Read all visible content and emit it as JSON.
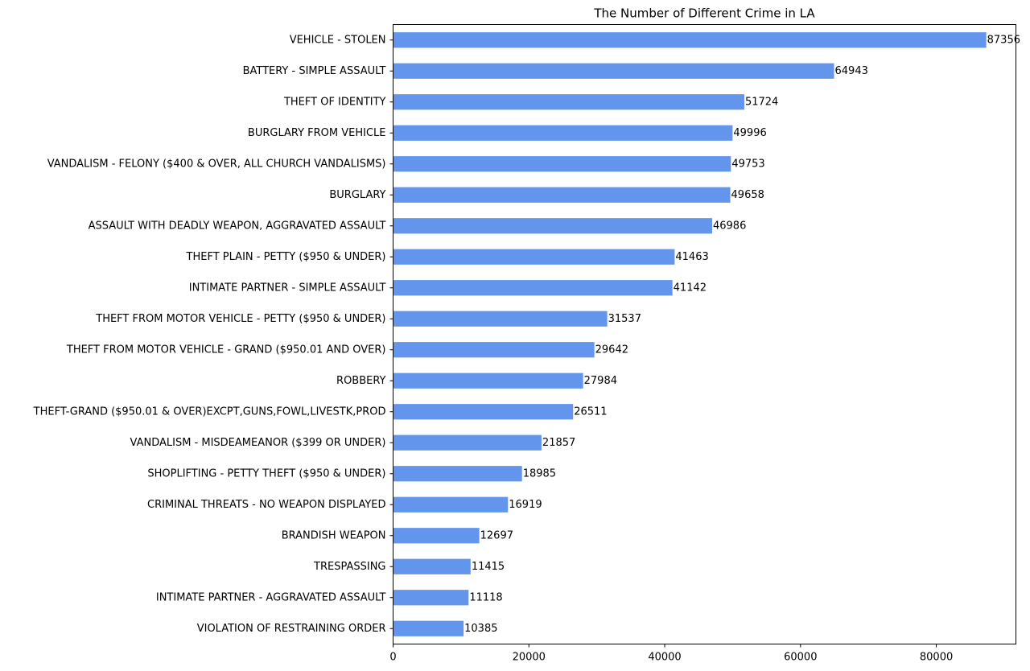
{
  "chart_data": {
    "type": "bar",
    "orientation": "horizontal",
    "title": "The Number of Different Crime in LA",
    "xlabel": "",
    "ylabel": "",
    "xlim": [
      0,
      91724
    ],
    "xticks": [
      0,
      20000,
      40000,
      60000,
      80000
    ],
    "xtick_labels": [
      "0",
      "20000",
      "40000",
      "60000",
      "80000"
    ],
    "grid": false,
    "bar_color": "#6495ED",
    "categories": [
      "VEHICLE - STOLEN",
      "BATTERY - SIMPLE ASSAULT",
      "THEFT OF IDENTITY",
      "BURGLARY FROM VEHICLE",
      "VANDALISM - FELONY ($400 & OVER, ALL CHURCH VANDALISMS)",
      "BURGLARY",
      "ASSAULT WITH DEADLY WEAPON, AGGRAVATED ASSAULT",
      "THEFT PLAIN - PETTY ($950 & UNDER)",
      "INTIMATE PARTNER - SIMPLE ASSAULT",
      "THEFT FROM MOTOR VEHICLE - PETTY ($950 & UNDER)",
      "THEFT FROM MOTOR VEHICLE - GRAND ($950.01 AND OVER)",
      "ROBBERY",
      "THEFT-GRAND ($950.01 & OVER)EXCPT,GUNS,FOWL,LIVESTK,PROD",
      "VANDALISM - MISDEAMEANOR ($399 OR UNDER)",
      "SHOPLIFTING - PETTY THEFT ($950 & UNDER)",
      "CRIMINAL THREATS - NO WEAPON DISPLAYED",
      "BRANDISH WEAPON",
      "TRESPASSING",
      "INTIMATE PARTNER - AGGRAVATED ASSAULT",
      "VIOLATION OF RESTRAINING ORDER"
    ],
    "values": [
      87356,
      64943,
      51724,
      49996,
      49753,
      49658,
      46986,
      41463,
      41142,
      31537,
      29642,
      27984,
      26511,
      21857,
      18985,
      16919,
      12697,
      11415,
      11118,
      10385
    ]
  }
}
